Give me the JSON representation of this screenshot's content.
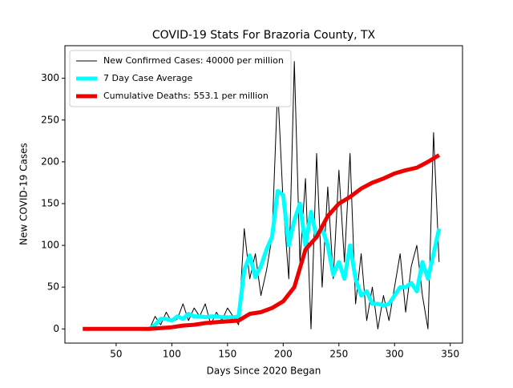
{
  "chart_data": {
    "type": "line",
    "title": "COVID-19 Stats For Brazoria County, TX",
    "x_label": "Days Since 2020 Began",
    "y_label": "New COVID-19 Cases",
    "xlim": [
      4,
      361
    ],
    "ylim": [
      -17,
      339
    ],
    "xticks": [
      50,
      100,
      150,
      200,
      250,
      300,
      350
    ],
    "yticks": [
      0,
      50,
      100,
      150,
      200,
      250,
      300
    ],
    "legend": "upper left",
    "series": [
      {
        "name": "New Confirmed Cases: 40000 per million",
        "color": "#000000",
        "width": 1,
        "x": [
          80,
          85,
          90,
          95,
          100,
          105,
          110,
          115,
          120,
          125,
          130,
          135,
          140,
          145,
          150,
          155,
          160,
          165,
          170,
          175,
          180,
          185,
          190,
          195,
          200,
          205,
          210,
          215,
          220,
          225,
          230,
          235,
          240,
          245,
          250,
          255,
          260,
          265,
          270,
          275,
          280,
          285,
          290,
          295,
          300,
          305,
          310,
          315,
          320,
          325,
          330,
          335,
          340
        ],
        "values": [
          0,
          15,
          5,
          20,
          8,
          12,
          30,
          10,
          25,
          15,
          30,
          5,
          20,
          10,
          25,
          15,
          5,
          120,
          60,
          90,
          40,
          70,
          110,
          290,
          150,
          60,
          320,
          80,
          180,
          0,
          210,
          50,
          170,
          60,
          190,
          80,
          210,
          30,
          90,
          10,
          50,
          0,
          40,
          10,
          50,
          90,
          20,
          75,
          100,
          40,
          0,
          235,
          80
        ]
      },
      {
        "name": "7 Day Case Average",
        "color": "#00ffff",
        "width": 5,
        "x": [
          80,
          85,
          90,
          95,
          100,
          105,
          110,
          115,
          120,
          125,
          130,
          135,
          140,
          145,
          150,
          155,
          160,
          165,
          170,
          175,
          180,
          185,
          190,
          195,
          200,
          205,
          210,
          215,
          220,
          225,
          230,
          235,
          240,
          245,
          250,
          255,
          260,
          265,
          270,
          275,
          280,
          285,
          290,
          295,
          300,
          305,
          310,
          315,
          320,
          325,
          330,
          335,
          340
        ],
        "values": [
          0,
          5,
          12,
          12,
          10,
          15,
          12,
          18,
          15,
          15,
          14,
          15,
          15,
          14,
          14,
          14,
          15,
          70,
          88,
          62,
          75,
          95,
          110,
          165,
          160,
          100,
          130,
          150,
          100,
          140,
          110,
          120,
          100,
          65,
          80,
          60,
          100,
          60,
          40,
          45,
          30,
          30,
          28,
          30,
          40,
          50,
          50,
          55,
          45,
          80,
          60,
          90,
          120
        ]
      },
      {
        "name": "Cumulative Deaths: 553.1 per million",
        "color": "#ee0000",
        "width": 5,
        "x": [
          20,
          30,
          40,
          50,
          60,
          70,
          80,
          90,
          100,
          110,
          120,
          130,
          140,
          150,
          160,
          170,
          180,
          190,
          200,
          210,
          220,
          230,
          240,
          250,
          260,
          270,
          280,
          290,
          300,
          310,
          320,
          330,
          340
        ],
        "values": [
          0,
          0,
          0,
          0,
          0,
          0,
          0,
          1,
          2,
          4,
          5,
          7,
          8,
          9,
          10,
          18,
          20,
          25,
          33,
          50,
          95,
          110,
          135,
          150,
          158,
          168,
          175,
          180,
          186,
          190,
          193,
          200,
          208
        ]
      }
    ]
  }
}
